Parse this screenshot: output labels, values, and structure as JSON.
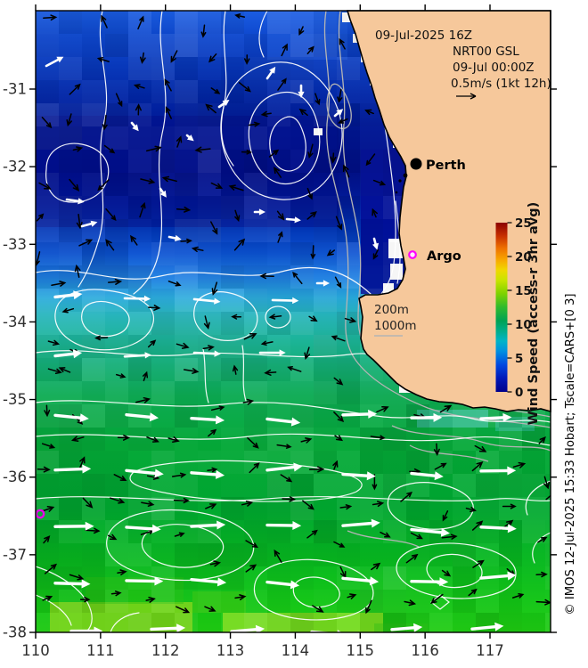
{
  "header": {
    "valid_time": "09-Jul-2025 16Z",
    "model_run": "NRT00 GSL",
    "model_time": "09-Jul 00:00Z",
    "vector_scale_label": "0.5m/s (1kt 12h)"
  },
  "map": {
    "place_labels": {
      "perth": "Perth",
      "argo": "Argo"
    },
    "depth_labels": {
      "d200": "200m",
      "d1000": "1000m"
    }
  },
  "axes": {
    "lon_ticks": [
      "110",
      "111",
      "112",
      "113",
      "114",
      "115",
      "116",
      "117"
    ],
    "lat_ticks": [
      "-31",
      "-32",
      "-33",
      "-34",
      "-35",
      "-36",
      "-37",
      "-38"
    ]
  },
  "colorbar": {
    "title": "Wind Speed (access-r 3hr avg)",
    "tick_labels": [
      "0",
      "5",
      "10",
      "15",
      "20",
      "25"
    ],
    "min": 0,
    "max": 25
  },
  "credit": "© IMOS 12-Jul-2025 15:33 Hobart; Tscale=CARS+[0 3]",
  "colors": {
    "land": "#f6c89b",
    "coast_outline": "#000000",
    "argo_marker": "#ff00ff",
    "argo_marker_left": "#e800e8",
    "ssh_contour": "#ffffff",
    "bathymetry_contour": "#b4b4b4",
    "perth_marker": "#000000"
  },
  "field_gradient": [
    {
      "o": 0.0,
      "c": "#1b5de2"
    },
    {
      "o": 0.04,
      "c": "#0e48ce"
    },
    {
      "o": 0.09,
      "c": "#0737ba"
    },
    {
      "o": 0.14,
      "c": "#0226a6"
    },
    {
      "o": 0.19,
      "c": "#001795"
    },
    {
      "o": 0.26,
      "c": "#000f8c"
    },
    {
      "o": 0.31,
      "c": "#001da0"
    },
    {
      "o": 0.35,
      "c": "#0034b6"
    },
    {
      "o": 0.39,
      "c": "#0b52d2"
    },
    {
      "o": 0.43,
      "c": "#1f80e2"
    },
    {
      "o": 0.462,
      "c": "#28aadc"
    },
    {
      "o": 0.49,
      "c": "#25b5bc"
    },
    {
      "o": 0.53,
      "c": "#1cb498"
    },
    {
      "o": 0.575,
      "c": "#14ae74"
    },
    {
      "o": 0.62,
      "c": "#0cab52"
    },
    {
      "o": 0.7,
      "c": "#05a938"
    },
    {
      "o": 0.8,
      "c": "#00a830"
    },
    {
      "o": 0.88,
      "c": "#07b820"
    },
    {
      "o": 0.95,
      "c": "#13c616"
    },
    {
      "o": 1.0,
      "c": "#1fcc12"
    }
  ],
  "colorbar_gradient": [
    {
      "o": 0.0,
      "c": "#00008b"
    },
    {
      "o": 0.08,
      "c": "#0018b8"
    },
    {
      "o": 0.16,
      "c": "#0048e0"
    },
    {
      "o": 0.24,
      "c": "#0090e0"
    },
    {
      "o": 0.3,
      "c": "#00b4c8"
    },
    {
      "o": 0.36,
      "c": "#00ad8a"
    },
    {
      "o": 0.42,
      "c": "#00a254"
    },
    {
      "o": 0.5,
      "c": "#2eba2e"
    },
    {
      "o": 0.58,
      "c": "#7ed200"
    },
    {
      "o": 0.66,
      "c": "#c8e400"
    },
    {
      "o": 0.72,
      "c": "#f0d800"
    },
    {
      "o": 0.78,
      "c": "#f8a800"
    },
    {
      "o": 0.85,
      "c": "#ee7000"
    },
    {
      "o": 0.92,
      "c": "#c83000"
    },
    {
      "o": 1.0,
      "c": "#8b0000"
    }
  ]
}
